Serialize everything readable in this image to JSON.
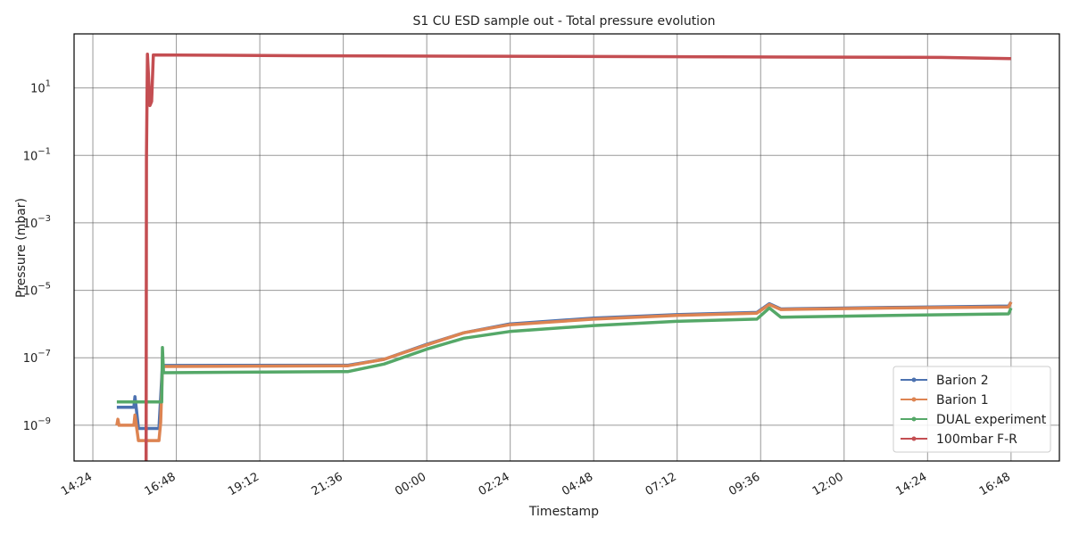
{
  "chart_data": {
    "type": "line",
    "title": "S1 CU ESD sample out - Total pressure evolution",
    "xlabel": "Timestamp",
    "ylabel": "Pressure (mbar)",
    "log_y": true,
    "grid": true,
    "legend": "lower right",
    "xlim": [
      13.86,
      42.19
    ],
    "xticks": [
      {
        "value": 14.4,
        "label": "14:24"
      },
      {
        "value": 16.8,
        "label": "16:48"
      },
      {
        "value": 19.2,
        "label": "19:12"
      },
      {
        "value": 21.6,
        "label": "21:36"
      },
      {
        "value": 24.0,
        "label": "00:00"
      },
      {
        "value": 26.4,
        "label": "02:24"
      },
      {
        "value": 28.8,
        "label": "04:48"
      },
      {
        "value": 31.2,
        "label": "07:12"
      },
      {
        "value": 33.6,
        "label": "09:36"
      },
      {
        "value": 36.0,
        "label": "12:00"
      },
      {
        "value": 38.4,
        "label": "14:24"
      },
      {
        "value": 40.8,
        "label": "16:48"
      }
    ],
    "ylim": [
      8.7e-11,
      400
    ],
    "yticks": [
      {
        "value": 10,
        "label": "10",
        "exponent": "1"
      },
      {
        "value": 0.1,
        "label": "10",
        "exponent": "−1"
      },
      {
        "value": 0.001,
        "label": "10",
        "exponent": "−3"
      },
      {
        "value": 1e-05,
        "label": "10",
        "exponent": "−5"
      },
      {
        "value": 1e-07,
        "label": "10",
        "exponent": "−7"
      },
      {
        "value": 1e-09,
        "label": "10",
        "exponent": "−9"
      }
    ],
    "series": [
      {
        "name": "Barion 2",
        "color": "#4c72b0",
        "x": [
          15.09,
          15.58,
          15.61,
          15.65,
          15.71,
          16.3,
          16.4,
          21.74,
          22.77,
          24.0,
          25.07,
          26.38,
          28.8,
          31.18,
          33.49,
          33.85,
          34.18,
          37.39,
          40.73,
          40.8
        ],
        "values": [
          3.4e-09,
          3.4e-09,
          7e-09,
          3e-09,
          8e-10,
          8e-10,
          5.9e-08,
          6e-08,
          9e-08,
          2.5e-07,
          5.5e-07,
          1e-06,
          1.5e-06,
          1.9e-06,
          2.2e-06,
          4e-06,
          2.8e-06,
          3.1e-06,
          3.4e-06,
          4.5e-06
        ]
      },
      {
        "name": "Barion 1",
        "color": "#dd8452",
        "x": [
          15.09,
          15.12,
          15.15,
          15.58,
          15.61,
          15.71,
          16.3,
          16.35,
          16.4,
          21.74,
          22.77,
          24.0,
          25.07,
          26.38,
          28.8,
          31.18,
          33.49,
          33.85,
          34.18,
          37.39,
          40.73,
          40.8
        ],
        "values": [
          1e-09,
          1.5e-09,
          1e-09,
          1e-09,
          2e-09,
          3.5e-10,
          3.5e-10,
          1.2e-09,
          5.5e-08,
          5.8e-08,
          9e-08,
          2.4e-07,
          5.5e-07,
          9.5e-07,
          1.4e-06,
          1.8e-06,
          2.1e-06,
          3.8e-06,
          2.7e-06,
          3e-06,
          3.2e-06,
          4.5e-06
        ]
      },
      {
        "name": "DUAL experiment",
        "color": "#55a868",
        "x": [
          15.09,
          16.38,
          16.4,
          16.43,
          21.74,
          22.77,
          24.0,
          25.07,
          26.38,
          28.8,
          31.18,
          33.49,
          33.85,
          34.18,
          37.39,
          40.73,
          40.8
        ],
        "values": [
          4.9e-09,
          4.9e-09,
          2e-07,
          3.6e-08,
          3.9e-08,
          6.5e-08,
          1.8e-07,
          3.8e-07,
          6e-07,
          9e-07,
          1.2e-06,
          1.4e-06,
          3e-06,
          1.6e-06,
          1.8e-06,
          2e-06,
          3e-06
        ]
      },
      {
        "name": "100mbar F-R",
        "color": "#c44e52",
        "x": [
          15.93,
          15.94,
          15.97,
          16.04,
          16.09,
          16.14,
          20.33,
          38.8,
          40.8
        ],
        "values": [
          5e-11,
          0.08,
          100,
          3,
          4,
          95,
          90,
          80,
          74
        ]
      }
    ]
  }
}
